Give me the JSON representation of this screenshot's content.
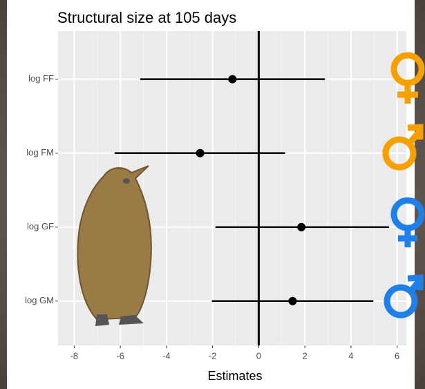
{
  "chart_data": {
    "type": "forest",
    "title": "Structural size at 105 days",
    "x_label": "Estimates",
    "categories": [
      "log FF",
      "log FM",
      "log GF",
      "log GM"
    ],
    "values": [
      -1.14,
      -2.54,
      1.85,
      1.47
    ],
    "lower": [
      -5.14,
      -6.25,
      -1.88,
      -2.03
    ],
    "upper": [
      2.87,
      1.14,
      5.65,
      4.97
    ],
    "color": "#000000",
    "xlim": [
      -8.7,
      6.4
    ],
    "xticks": [
      -8,
      -6,
      -4,
      -2,
      0,
      2,
      4,
      6
    ],
    "grid": true
  }
}
